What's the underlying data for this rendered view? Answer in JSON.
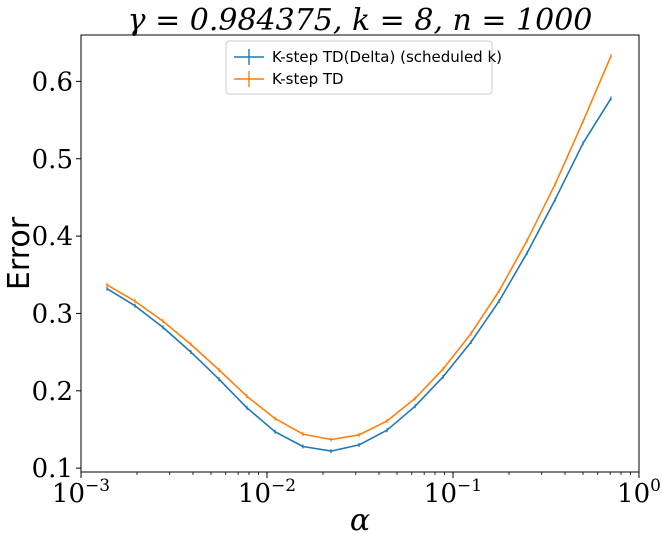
{
  "chart_data": {
    "type": "line",
    "title": "γ = 0.984375, k = 8, n = 1000",
    "xlabel": "α",
    "ylabel": "Error",
    "x_scale": "log",
    "xlim": [
      0.001,
      1
    ],
    "ylim": [
      0.095,
      0.66
    ],
    "x_ticks": [
      {
        "value": 0.001,
        "base": "10",
        "exp": "−3"
      },
      {
        "value": 0.01,
        "base": "10",
        "exp": "−2"
      },
      {
        "value": 0.1,
        "base": "10",
        "exp": "−1"
      },
      {
        "value": 1,
        "base": "10",
        "exp": "0"
      }
    ],
    "y_ticks": [
      {
        "value": 0.1,
        "label": "0.1"
      },
      {
        "value": 0.2,
        "label": "0.2"
      },
      {
        "value": 0.3,
        "label": "0.3"
      },
      {
        "value": 0.4,
        "label": "0.4"
      },
      {
        "value": 0.5,
        "label": "0.5"
      },
      {
        "value": 0.6,
        "label": "0.6"
      }
    ],
    "legend_position": "top-center",
    "grid": false,
    "x": [
      0.00138,
      0.00195,
      0.00276,
      0.0039,
      0.00552,
      0.0078,
      0.01105,
      0.0156,
      0.0221,
      0.03125,
      0.0442,
      0.0625,
      0.0884,
      0.125,
      0.177,
      0.25,
      0.354,
      0.5,
      0.707
    ],
    "series": [
      {
        "name": "K-step TD(Delta) (scheduled k)",
        "color": "#1f77b4",
        "values": [
          0.332,
          0.31,
          0.282,
          0.25,
          0.215,
          0.178,
          0.147,
          0.128,
          0.122,
          0.13,
          0.149,
          0.18,
          0.218,
          0.263,
          0.316,
          0.378,
          0.447,
          0.52,
          0.578
        ]
      },
      {
        "name": "K-step TD",
        "color": "#ff7f0e",
        "values": [
          0.337,
          0.316,
          0.29,
          0.26,
          0.227,
          0.193,
          0.164,
          0.144,
          0.137,
          0.143,
          0.161,
          0.19,
          0.228,
          0.274,
          0.329,
          0.394,
          0.467,
          0.548,
          0.633
        ]
      }
    ]
  }
}
